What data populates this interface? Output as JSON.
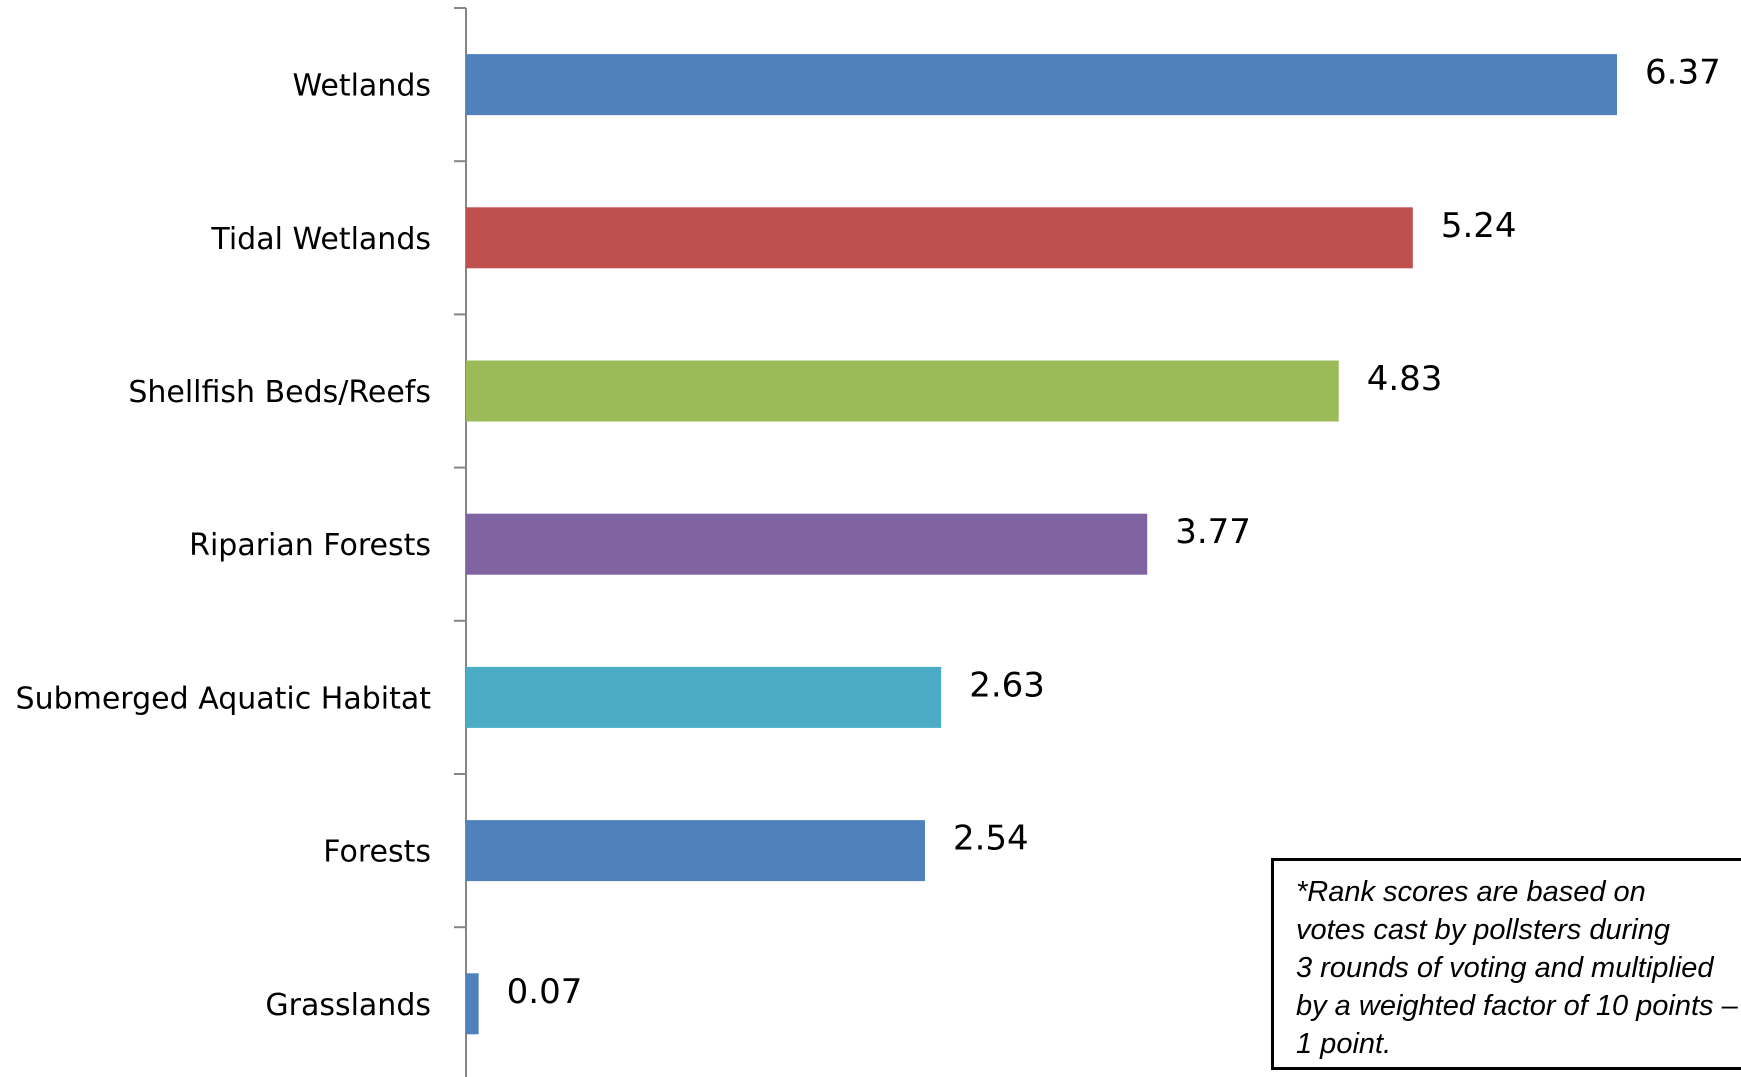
{
  "chart_data": {
    "type": "bar",
    "orientation": "horizontal",
    "categories": [
      "Wetlands",
      "Tidal Wetlands",
      "Shellfish Beds/Reefs",
      "Riparian Forests",
      "Submerged Aquatic Habitat",
      "Forests",
      "Grasslands"
    ],
    "values": [
      6.37,
      5.24,
      4.83,
      3.77,
      2.63,
      2.54,
      0.07
    ],
    "value_labels": [
      "6.37",
      "5.24",
      "4.83",
      "3.77",
      "2.63",
      "2.54",
      "0.07"
    ],
    "colors": [
      "#4F81BD",
      "#C0504D",
      "#9BBB59",
      "#8064A2",
      "#4BACC6",
      "#4F81BD",
      "#4F81BD"
    ],
    "xlim": [
      0,
      7
    ],
    "grid": false,
    "legend": "none",
    "title": "",
    "xlabel": "",
    "ylabel": ""
  },
  "note": {
    "lines": [
      "*Rank scores are based on",
      "votes cast by pollsters during",
      "3 rounds of voting and multiplied",
      "by a weighted factor of 10 points –",
      "1 point."
    ]
  }
}
